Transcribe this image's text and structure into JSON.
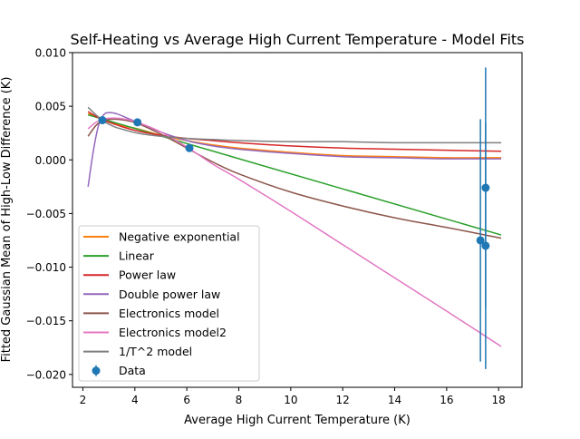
{
  "chart_data": {
    "type": "line",
    "title": "Self-Heating vs Average High Current Temperature - Model Fits",
    "xlabel": "Average High Current Temperature (K)",
    "ylabel": "Fitted Gaussian Mean of High-Low Difference (K)",
    "xlim": [
      1.6,
      18.9
    ],
    "ylim": [
      -0.0212,
      0.01
    ],
    "xticks": [
      2,
      4,
      6,
      8,
      10,
      12,
      14,
      16,
      18
    ],
    "xtick_labels": [
      "2",
      "4",
      "6",
      "8",
      "10",
      "12",
      "14",
      "16",
      "18"
    ],
    "yticks": [
      0.01,
      0.005,
      0.0,
      -0.005,
      -0.01,
      -0.015,
      -0.02
    ],
    "ytick_labels": [
      "0.010",
      "0.005",
      "0.000",
      "−0.005",
      "−0.010",
      "−0.015",
      "−0.020"
    ],
    "grid": false,
    "legend_position": "lower-left",
    "series": [
      {
        "name": "Negative exponential",
        "color": "#ff7f0e",
        "x": [
          2.2,
          2.7,
          3.5,
          4.1,
          5,
          6,
          7,
          8,
          10,
          12,
          14,
          16,
          18.1
        ],
        "y": [
          0.0043,
          0.0039,
          0.0032,
          0.0029,
          0.0023,
          0.0018,
          0.0014,
          0.0011,
          0.0007,
          0.0004,
          0.0003,
          0.0002,
          0.0002
        ]
      },
      {
        "name": "Linear",
        "color": "#2ca02c",
        "x": [
          2.2,
          18.1
        ],
        "y": [
          0.0042,
          -0.007
        ]
      },
      {
        "name": "Power law",
        "color": "#d62728",
        "x": [
          2.2,
          2.7,
          3.5,
          4.1,
          5,
          6,
          7,
          8,
          10,
          12,
          14,
          16,
          18.1
        ],
        "y": [
          0.0045,
          0.0038,
          0.0031,
          0.0027,
          0.0023,
          0.002,
          0.0018,
          0.0016,
          0.0013,
          0.0011,
          0.001,
          0.0009,
          0.0008
        ]
      },
      {
        "name": "Double power law",
        "color": "#9467bd",
        "x": [
          2.2,
          2.4,
          2.6,
          2.8,
          3.0,
          3.3,
          3.7,
          4.1,
          5,
          6,
          7,
          8,
          10,
          12,
          14,
          16,
          18.1
        ],
        "y": [
          -0.0025,
          0.0008,
          0.0032,
          0.0042,
          0.0044,
          0.0043,
          0.0039,
          0.0035,
          0.0026,
          0.0018,
          0.0013,
          0.001,
          0.0006,
          0.0003,
          0.0002,
          0.0001,
          0.0001
        ]
      },
      {
        "name": "Electronics model",
        "color": "#8c564b",
        "x": [
          2.2,
          2.5,
          2.8,
          3.2,
          3.6,
          4.1,
          5,
          6,
          7,
          8,
          10,
          12,
          14,
          16,
          18.1
        ],
        "y": [
          0.0022,
          0.0032,
          0.0037,
          0.0038,
          0.0037,
          0.0034,
          0.0024,
          0.0011,
          -0.0002,
          -0.0013,
          -0.003,
          -0.0043,
          -0.0054,
          -0.0063,
          -0.0073
        ]
      },
      {
        "name": "Electronics model2",
        "color": "#e377c2",
        "x": [
          2.2,
          2.5,
          2.8,
          3.2,
          3.6,
          4.1,
          5,
          6,
          7,
          8,
          10,
          12,
          14,
          16,
          18.1
        ],
        "y": [
          0.0029,
          0.0035,
          0.0038,
          0.0039,
          0.0038,
          0.0035,
          0.0026,
          0.0012,
          -0.0004,
          -0.0018,
          -0.0048,
          -0.0079,
          -0.011,
          -0.0141,
          -0.0174
        ]
      },
      {
        "name": "1/T^2 model",
        "color": "#7f7f7f",
        "x": [
          2.2,
          2.5,
          2.8,
          3.2,
          3.6,
          4.1,
          5,
          6,
          7,
          8,
          10,
          12,
          14,
          16,
          18.1
        ],
        "y": [
          0.0049,
          0.0042,
          0.0036,
          0.0031,
          0.0028,
          0.0025,
          0.0022,
          0.002,
          0.0019,
          0.0018,
          0.0017,
          0.0017,
          0.0016,
          0.0016,
          0.0016
        ]
      }
    ],
    "data_points": {
      "name": "Data",
      "color": "#1f77b4",
      "x": [
        2.75,
        4.1,
        6.1,
        17.3,
        17.5,
        17.5
      ],
      "y": [
        0.0037,
        0.0035,
        0.0011,
        -0.0075,
        -0.0026,
        -0.008
      ],
      "yerr": [
        0.0,
        0.0,
        0.0,
        0.0113,
        0.0112,
        0.0115
      ]
    }
  }
}
